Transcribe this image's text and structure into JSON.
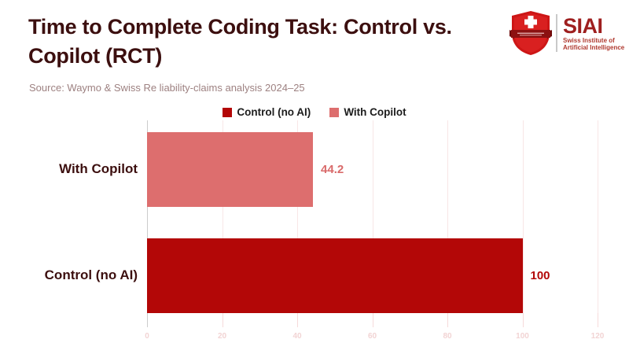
{
  "header": {
    "title": "Time to Complete Coding Task: Control vs. Copilot (RCT)",
    "source": "Source: Waymo & Swiss Re liability-claims analysis 2024–25"
  },
  "logo": {
    "name": "SIAI",
    "subtitle_line1": "Swiss Institute of",
    "subtitle_line2": "Artificial Intelligence",
    "brand_color": "#9e1f1f",
    "shield_red": "#cd1616",
    "shield_dark": "#8c1111"
  },
  "colors": {
    "title_text": "#3c0f0f",
    "source_text": "#9d8181",
    "control_red": "#b30707",
    "copilot_pink": "#dd6e6e",
    "gridline": "#f8e6e6",
    "axis_line": "#cccccc",
    "tick_label": "#f2d4d4",
    "legend_text": "#1c1c1c"
  },
  "chart_data": {
    "type": "bar",
    "orientation": "horizontal",
    "title": "Time to Complete Coding Task: Control vs. Copilot (RCT)",
    "categories": [
      "With Copilot",
      "Control (no AI)"
    ],
    "values": [
      44.2,
      100
    ],
    "value_labels": [
      "44.2",
      "100"
    ],
    "bar_colors": [
      "#dd6e6e",
      "#b30707"
    ],
    "value_label_colors": [
      "#d96a6a",
      "#b30707"
    ],
    "xlabel": "",
    "ylabel": "",
    "xlim": [
      0,
      120
    ],
    "xticks": [
      0,
      20,
      40,
      60,
      80,
      100,
      120
    ],
    "grid": true,
    "legend": {
      "position": "top",
      "entries": [
        {
          "label": "Control (no AI)",
          "color": "#b30707"
        },
        {
          "label": "With Copilot",
          "color": "#dd6e6e"
        }
      ]
    }
  }
}
